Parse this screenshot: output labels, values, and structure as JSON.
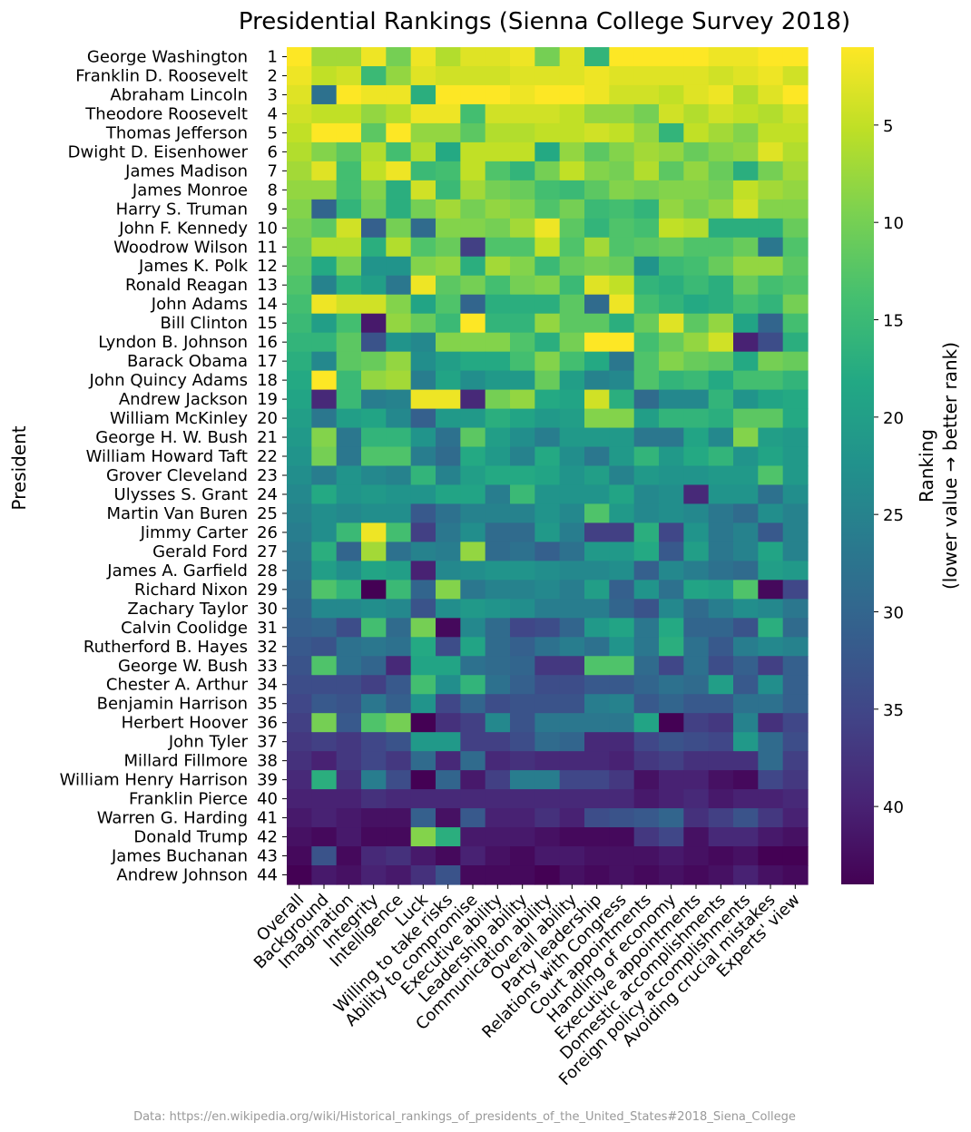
{
  "chart_data": {
    "type": "heatmap",
    "title": "Presidential Rankings (Sienna College Survey 2018)",
    "ylabel": "President",
    "xlabel": "",
    "colorbar_label": [
      "Ranking",
      "(lower value → better rank)"
    ],
    "colorbar_ticks": [
      5,
      10,
      15,
      20,
      25,
      30,
      35,
      40
    ],
    "value_range": [
      1,
      44
    ],
    "colormap": "viridis (reversed: low=yellow, high=purple)",
    "columns": [
      "Overall",
      "Background",
      "Imagination",
      "Integrity",
      "Intelligence",
      "Luck",
      "Willing to take risks",
      "Ability to compromise",
      "Executive ability",
      "Leadership ability",
      "Communication ability",
      "Overall ability",
      "Party leadership",
      "Relations with Congress",
      "Court appointments",
      "Handling of economy",
      "Executive appointments",
      "Domestic accomplishments",
      "Foreign policy accomplishments",
      "Avoiding crucial mistakes",
      "Experts' view"
    ],
    "presidents": [
      "George Washington",
      "Franklin D. Roosevelt",
      "Abraham Lincoln",
      "Theodore Roosevelt",
      "Thomas Jefferson",
      "Dwight D. Eisenhower",
      "James Madison",
      "James Monroe",
      "Harry S. Truman",
      "John F. Kennedy",
      "Woodrow Wilson",
      "James K. Polk",
      "Ronald Reagan",
      "John Adams",
      "Bill Clinton",
      "Lyndon B. Johnson",
      "Barack Obama",
      "John Quincy Adams",
      "Andrew Jackson",
      "William McKinley",
      "George H. W. Bush",
      "William Howard Taft",
      "Grover Cleveland",
      "Ulysses S. Grant",
      "Martin Van Buren",
      "Jimmy Carter",
      "Gerald Ford",
      "James A. Garfield",
      "Richard Nixon",
      "Zachary Taylor",
      "Calvin Coolidge",
      "Rutherford B. Hayes",
      "George W. Bush",
      "Chester A. Arthur",
      "Benjamin Harrison",
      "Herbert Hoover",
      "John Tyler",
      "Millard Fillmore",
      "William Henry Harrison",
      "Franklin Pierce",
      "Warren G. Harding",
      "Donald Trump",
      "James Buchanan",
      "Andrew Johnson"
    ],
    "ranks": [
      1,
      2,
      3,
      4,
      5,
      6,
      7,
      8,
      9,
      10,
      11,
      12,
      13,
      14,
      15,
      16,
      17,
      18,
      19,
      20,
      21,
      22,
      23,
      24,
      25,
      26,
      27,
      28,
      29,
      30,
      31,
      32,
      33,
      34,
      35,
      36,
      37,
      38,
      39,
      40,
      41,
      42,
      43,
      44
    ],
    "values": [
      [
        1,
        7,
        7,
        2,
        10,
        2,
        6,
        3,
        3,
        2,
        10,
        3,
        16,
        1,
        1,
        1,
        1,
        2,
        2,
        1,
        1
      ],
      [
        2,
        5,
        4,
        15,
        8,
        3,
        4,
        4,
        4,
        3,
        3,
        3,
        2,
        3,
        3,
        3,
        3,
        4,
        3,
        2,
        4
      ],
      [
        3,
        28,
        1,
        2,
        2,
        17,
        1,
        1,
        1,
        2,
        1,
        1,
        2,
        4,
        4,
        5,
        3,
        2,
        6,
        3,
        1
      ],
      [
        4,
        5,
        5,
        8,
        6,
        2,
        2,
        14,
        4,
        4,
        4,
        5,
        8,
        8,
        10,
        4,
        6,
        4,
        5,
        6,
        4
      ],
      [
        5,
        1,
        1,
        12,
        1,
        8,
        8,
        12,
        6,
        6,
        5,
        5,
        4,
        5,
        8,
        16,
        5,
        7,
        9,
        5,
        5
      ],
      [
        6,
        9,
        12,
        6,
        14,
        6,
        18,
        5,
        5,
        5,
        18,
        8,
        12,
        9,
        7,
        8,
        11,
        9,
        8,
        3,
        6
      ],
      [
        7,
        3,
        14,
        5,
        2,
        15,
        14,
        5,
        13,
        16,
        10,
        5,
        9,
        10,
        6,
        12,
        8,
        11,
        17,
        10,
        7
      ],
      [
        8,
        8,
        14,
        9,
        17,
        4,
        15,
        7,
        10,
        11,
        14,
        15,
        12,
        9,
        10,
        9,
        9,
        10,
        5,
        7,
        8
      ],
      [
        9,
        30,
        16,
        10,
        17,
        10,
        7,
        10,
        8,
        9,
        13,
        10,
        15,
        14,
        16,
        8,
        10,
        8,
        4,
        9,
        9
      ],
      [
        10,
        12,
        4,
        31,
        10,
        29,
        9,
        9,
        10,
        7,
        2,
        12,
        16,
        13,
        14,
        5,
        6,
        17,
        17,
        17,
        11
      ],
      [
        11,
        6,
        6,
        17,
        6,
        13,
        11,
        36,
        13,
        13,
        5,
        13,
        7,
        13,
        12,
        11,
        13,
        13,
        11,
        27,
        13
      ],
      [
        12,
        18,
        10,
        22,
        22,
        9,
        8,
        17,
        7,
        9,
        15,
        11,
        10,
        11,
        22,
        15,
        14,
        11,
        8,
        8,
        12
      ],
      [
        13,
        25,
        17,
        20,
        27,
        2,
        12,
        10,
        14,
        10,
        9,
        15,
        3,
        5,
        16,
        17,
        15,
        17,
        11,
        14,
        13
      ],
      [
        14,
        2,
        4,
        4,
        9,
        19,
        13,
        30,
        17,
        17,
        17,
        12,
        29,
        2,
        14,
        16,
        18,
        17,
        14,
        16,
        10
      ],
      [
        15,
        20,
        14,
        41,
        8,
        11,
        15,
        1,
        16,
        16,
        8,
        12,
        12,
        17,
        11,
        3,
        12,
        8,
        19,
        30,
        14
      ],
      [
        16,
        16,
        12,
        33,
        22,
        24,
        9,
        9,
        9,
        13,
        17,
        10,
        1,
        1,
        14,
        11,
        8,
        4,
        40,
        34,
        17
      ],
      [
        17,
        24,
        12,
        11,
        8,
        23,
        20,
        18,
        18,
        14,
        9,
        14,
        18,
        27,
        13,
        9,
        11,
        12,
        18,
        10,
        11
      ],
      [
        18,
        1,
        15,
        8,
        7,
        26,
        19,
        23,
        21,
        21,
        11,
        20,
        25,
        24,
        13,
        16,
        15,
        18,
        14,
        14,
        16
      ],
      [
        19,
        39,
        15,
        26,
        25,
        2,
        2,
        39,
        10,
        8,
        18,
        19,
        4,
        17,
        29,
        24,
        24,
        16,
        22,
        19,
        18
      ],
      [
        20,
        27,
        20,
        19,
        24,
        31,
        21,
        21,
        17,
        19,
        21,
        20,
        9,
        9,
        20,
        16,
        16,
        17,
        12,
        12,
        18
      ],
      [
        21,
        9,
        27,
        16,
        16,
        22,
        28,
        12,
        20,
        23,
        26,
        21,
        21,
        21,
        27,
        27,
        19,
        24,
        9,
        20,
        21
      ],
      [
        22,
        10,
        27,
        13,
        13,
        26,
        29,
        18,
        21,
        25,
        18,
        23,
        27,
        21,
        16,
        21,
        18,
        16,
        22,
        19,
        21
      ],
      [
        23,
        26,
        22,
        24,
        25,
        16,
        25,
        20,
        18,
        18,
        19,
        22,
        20,
        25,
        21,
        22,
        22,
        21,
        21,
        13,
        21
      ],
      [
        24,
        18,
        22,
        21,
        22,
        22,
        19,
        19,
        26,
        15,
        22,
        22,
        22,
        19,
        24,
        23,
        39,
        22,
        22,
        28,
        23
      ],
      [
        25,
        23,
        24,
        23,
        23,
        32,
        28,
        25,
        25,
        25,
        22,
        24,
        13,
        21,
        24,
        23,
        24,
        27,
        29,
        23,
        25
      ],
      [
        26,
        23,
        15,
        2,
        14,
        36,
        27,
        23,
        29,
        29,
        21,
        26,
        36,
        36,
        17,
        35,
        22,
        27,
        25,
        32,
        25
      ],
      [
        27,
        17,
        30,
        7,
        28,
        25,
        26,
        8,
        29,
        28,
        31,
        28,
        21,
        21,
        18,
        32,
        20,
        27,
        25,
        19,
        25
      ],
      [
        28,
        20,
        23,
        19,
        20,
        40,
        24,
        23,
        22,
        22,
        23,
        24,
        24,
        23,
        31,
        24,
        26,
        28,
        29,
        20,
        21
      ],
      [
        29,
        13,
        16,
        44,
        15,
        30,
        9,
        27,
        25,
        25,
        24,
        26,
        20,
        31,
        22,
        28,
        19,
        20,
        13,
        43,
        35
      ],
      [
        30,
        24,
        24,
        23,
        24,
        33,
        23,
        21,
        22,
        23,
        26,
        26,
        26,
        30,
        33,
        24,
        29,
        26,
        23,
        24,
        27
      ],
      [
        31,
        30,
        34,
        14,
        29,
        10,
        43,
        24,
        29,
        35,
        34,
        30,
        21,
        19,
        27,
        18,
        30,
        30,
        33,
        17,
        29
      ],
      [
        32,
        33,
        28,
        27,
        28,
        18,
        34,
        19,
        29,
        31,
        28,
        26,
        28,
        22,
        27,
        17,
        28,
        32,
        26,
        24,
        25
      ],
      [
        33,
        13,
        28,
        30,
        39,
        19,
        19,
        28,
        29,
        30,
        37,
        37,
        13,
        13,
        29,
        35,
        28,
        34,
        31,
        36,
        31
      ],
      [
        34,
        34,
        34,
        36,
        32,
        14,
        23,
        16,
        28,
        31,
        34,
        34,
        32,
        32,
        30,
        28,
        29,
        20,
        32,
        23,
        31
      ],
      [
        35,
        32,
        33,
        27,
        31,
        22,
        35,
        30,
        34,
        33,
        33,
        33,
        26,
        25,
        32,
        30,
        32,
        32,
        28,
        28,
        31
      ],
      [
        36,
        10,
        32,
        13,
        10,
        44,
        38,
        36,
        24,
        33,
        27,
        27,
        27,
        27,
        19,
        44,
        36,
        37,
        25,
        38,
        35
      ],
      [
        37,
        36,
        37,
        35,
        33,
        21,
        21,
        36,
        36,
        34,
        29,
        30,
        39,
        39,
        35,
        33,
        34,
        35,
        21,
        29,
        34
      ],
      [
        38,
        40,
        37,
        35,
        37,
        29,
        39,
        29,
        39,
        38,
        39,
        39,
        39,
        40,
        37,
        36,
        38,
        38,
        38,
        29,
        36
      ],
      [
        39,
        17,
        38,
        26,
        34,
        44,
        30,
        41,
        36,
        26,
        26,
        35,
        35,
        37,
        42,
        40,
        40,
        42,
        43,
        35,
        37
      ],
      [
        40,
        40,
        40,
        38,
        39,
        39,
        39,
        39,
        39,
        39,
        39,
        39,
        39,
        39,
        41,
        40,
        39,
        41,
        40,
        40,
        39
      ],
      [
        41,
        40,
        41,
        42,
        42,
        31,
        42,
        32,
        40,
        40,
        38,
        40,
        34,
        33,
        32,
        30,
        38,
        36,
        33,
        37,
        40
      ],
      [
        42,
        43,
        41,
        43,
        43,
        9,
        17,
        41,
        41,
        41,
        42,
        43,
        43,
        43,
        37,
        35,
        42,
        39,
        39,
        41,
        42
      ],
      [
        43,
        33,
        43,
        39,
        38,
        41,
        43,
        40,
        42,
        43,
        41,
        41,
        42,
        42,
        42,
        41,
        42,
        43,
        42,
        44,
        44
      ],
      [
        44,
        41,
        42,
        40,
        41,
        38,
        33,
        43,
        43,
        43,
        44,
        42,
        43,
        42,
        43,
        42,
        43,
        42,
        40,
        42,
        43
      ]
    ],
    "source_note": "Data: https://en.wikipedia.org/wiki/Historical_rankings_of_presidents_of_the_United_States#2018_Siena_College"
  }
}
